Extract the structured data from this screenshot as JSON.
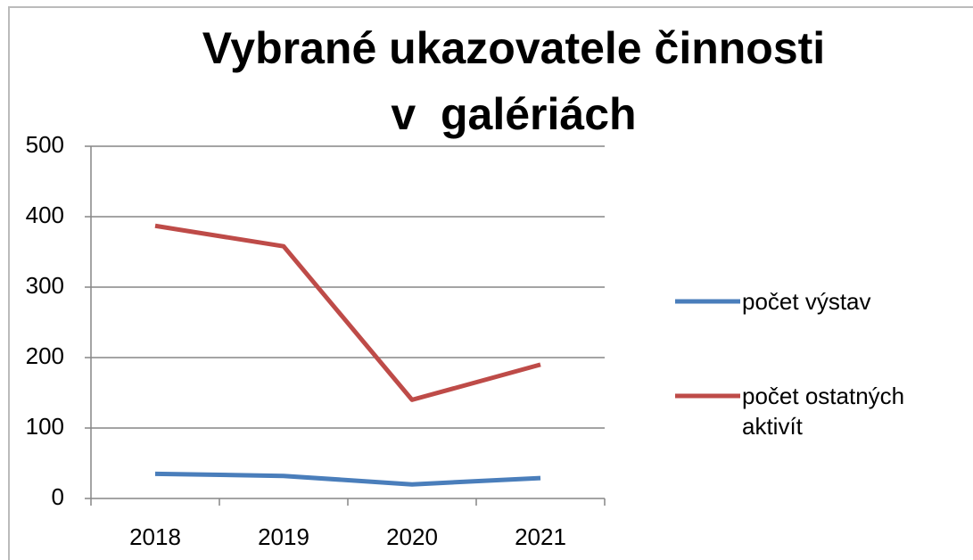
{
  "chart_data": {
    "type": "line",
    "title": [
      "Vybrané ukazovatele činnosti",
      "v  galériách"
    ],
    "categories": [
      "2018",
      "2019",
      "2020",
      "2021"
    ],
    "series": [
      {
        "name": "počet výstav",
        "color": "#4a7ebb",
        "values": [
          35,
          32,
          20,
          29
        ]
      },
      {
        "name": "počet ostatných aktivít",
        "color": "#be4b48",
        "values": [
          387,
          358,
          140,
          190
        ]
      }
    ],
    "ylim": [
      0,
      500
    ],
    "yticks": [
      0,
      100,
      200,
      300,
      400,
      500
    ],
    "grid": true,
    "legend": "right"
  }
}
